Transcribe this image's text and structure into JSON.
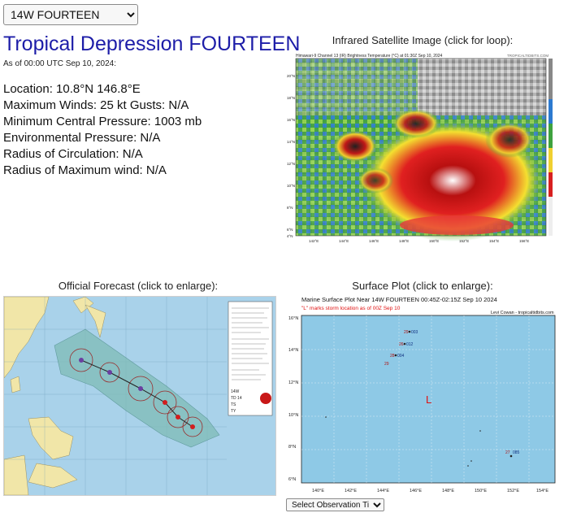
{
  "storm_select": {
    "selected": "14W FOURTEEN"
  },
  "title": "Tropical Depression FOURTEEN",
  "as_of": "As of 00:00 UTC Sep 10, 2024:",
  "details": {
    "location": "Location: 10.8°N 146.8°E",
    "winds": "Maximum Winds: 25 kt  Gusts: N/A",
    "pressure": "Minimum Central Pressure: 1003 mb",
    "env_pressure": "Environmental Pressure: N/A",
    "radius_circ": "Radius of Circulation: N/A",
    "radius_max": "Radius of Maximum wind: N/A"
  },
  "ir": {
    "caption": "Infrared Satellite Image (click for loop):",
    "header": "Himawari-9 Channel 13 (IR) Brightness Temperature (°C) at 01:30Z Sep 10, 2024",
    "credit": "TROPICALTIDBITS.COM",
    "lat_labels": [
      "20°N",
      "18°N",
      "16°N",
      "14°N",
      "12°N",
      "10°N",
      "8°N",
      "6°N",
      "4°N"
    ],
    "lon_labels": [
      "142°E",
      "144°E",
      "146°E",
      "148°E",
      "150°E",
      "152°E",
      "154°E",
      "156°E"
    ]
  },
  "forecast": {
    "caption": "Official Forecast (click to enlarge):",
    "labels": [
      "14W",
      "TD 14",
      "TS",
      "TY"
    ]
  },
  "surface": {
    "caption": "Surface Plot (click to enlarge):",
    "plot_title": "Marine Surface Plot Near 14W FOURTEEN 00:45Z-02:15Z Sep 10 2024",
    "note": "\"L\" marks storm location as of 00Z Sep 10",
    "credit": "Levi Cowan - tropicaltidbits.com",
    "storm_marker": "L",
    "lat_labels": [
      "16°N",
      "14°N",
      "12°N",
      "10°N",
      "8°N",
      "6°N"
    ],
    "lon_labels": [
      "140°E",
      "142°E",
      "144°E",
      "146°E",
      "148°E",
      "150°E",
      "152°E",
      "154°E"
    ],
    "stations": [
      {
        "label": "29",
        "value": "003"
      },
      {
        "label": "26",
        "value": "012"
      },
      {
        "label": "28",
        "value": "004"
      },
      {
        "label": "29",
        "value": ""
      },
      {
        "label": "27",
        "value": "085"
      }
    ]
  },
  "obs_select": {
    "selected": "Select Observation Time..."
  },
  "colors": {
    "title": "#1d1da8",
    "ocean": "#8ec9e6",
    "storm_l": "#e01010"
  }
}
